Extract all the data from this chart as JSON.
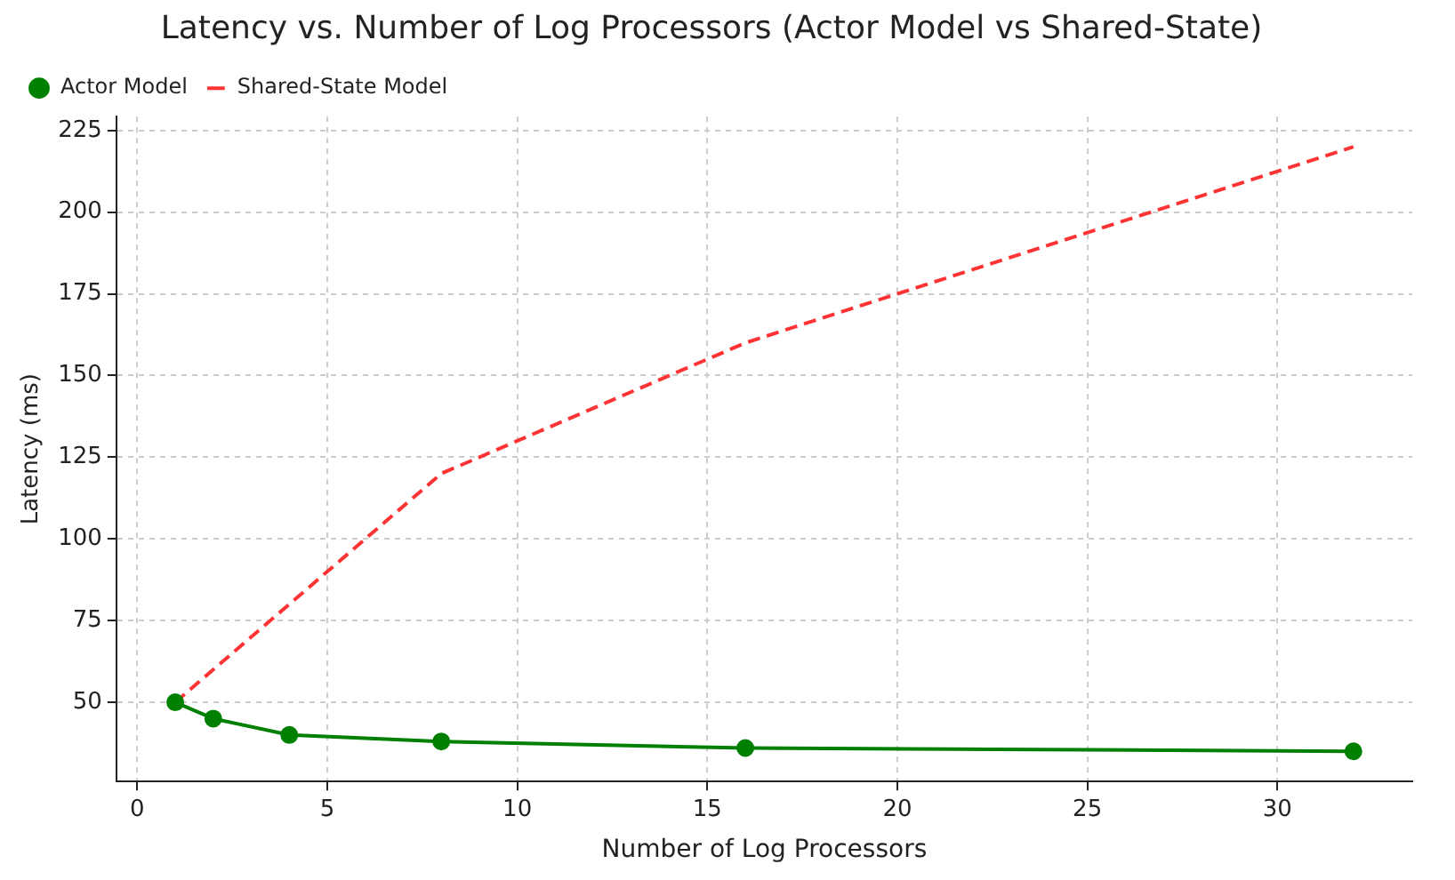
{
  "chart_data": {
    "type": "line",
    "title": "Latency vs. Number of Log Processors (Actor Model vs Shared-State)",
    "xlabel": "Number of Log Processors",
    "ylabel": "Latency (ms)",
    "x": [
      1,
      2,
      4,
      8,
      16,
      32
    ],
    "series": [
      {
        "name": "Actor Model",
        "color": "#008000",
        "values": [
          50,
          45,
          40,
          38,
          36,
          35
        ],
        "marker": "circle",
        "line_style": "solid"
      },
      {
        "name": "Shared-State Model",
        "color": "#ff3333",
        "values": [
          50,
          60,
          80,
          120,
          160,
          220
        ],
        "marker": "none",
        "line_style": "dashed"
      }
    ],
    "xlim": [
      -0.55,
      33.55
    ],
    "xticks": [
      0,
      5,
      10,
      15,
      20,
      25,
      30
    ],
    "ylim": [
      25.75,
      229.25
    ],
    "yticks": [
      50,
      75,
      100,
      125,
      150,
      175,
      200,
      225
    ],
    "grid": true,
    "legend": "top left"
  }
}
